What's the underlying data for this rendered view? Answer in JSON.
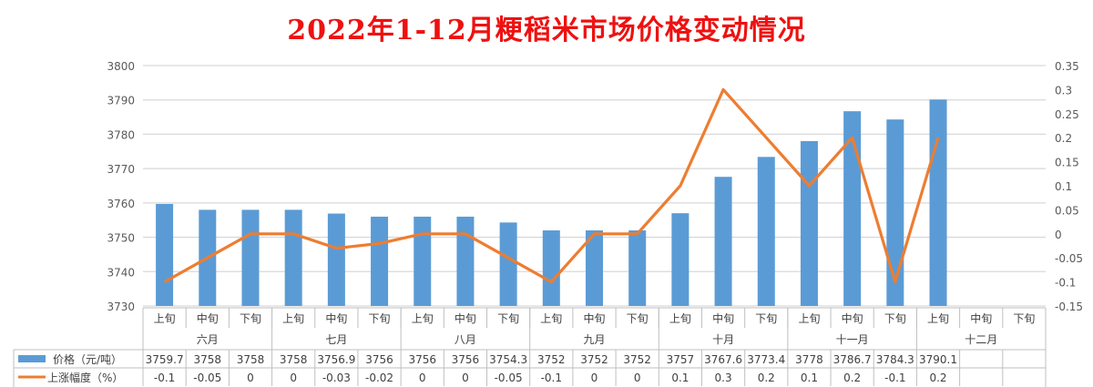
{
  "title": "2022年1-12月粳稻米市场价格变动情况",
  "colors": {
    "bar": "#5b9bd5",
    "line": "#ed7d31",
    "title": "#ee1111",
    "grid": "#d9d9d9"
  },
  "chart_data": {
    "type": "bar+line",
    "title": "2022年1-12月粳稻米市场价格变动情况",
    "categories_months": [
      "六月",
      "七月",
      "八月",
      "九月",
      "十月",
      "十一月",
      "十二月"
    ],
    "categories_periods": [
      "上旬",
      "中旬",
      "下旬"
    ],
    "categories": [
      "六月上旬",
      "六月中旬",
      "六月下旬",
      "七月上旬",
      "七月中旬",
      "七月下旬",
      "八月上旬",
      "八月中旬",
      "八月下旬",
      "九月上旬",
      "九月中旬",
      "九月下旬",
      "十月上旬",
      "十月中旬",
      "十月下旬",
      "十一月上旬",
      "十一月中旬",
      "十一月下旬",
      "十二月上旬",
      "十二月中旬",
      "十二月下旬"
    ],
    "series": [
      {
        "name": "价格（元/吨）",
        "type": "bar",
        "axis": "left",
        "values": [
          3759.7,
          3758,
          3758,
          3758,
          3756.9,
          3756,
          3756,
          3756,
          3754.3,
          3752,
          3752,
          3752,
          3757,
          3767.6,
          3773.4,
          3778,
          3786.7,
          3784.3,
          3790.1,
          null,
          null
        ]
      },
      {
        "name": "上涨幅度（%）",
        "type": "line",
        "axis": "right",
        "values": [
          -0.1,
          -0.05,
          0,
          0,
          -0.03,
          -0.02,
          0,
          0,
          -0.05,
          -0.1,
          0,
          0,
          0.1,
          0.3,
          0.2,
          0.1,
          0.2,
          -0.1,
          0.2,
          null,
          null
        ]
      }
    ],
    "left_axis": {
      "ylim": [
        3730,
        3800
      ],
      "ticks": [
        3730,
        3740,
        3750,
        3760,
        3770,
        3780,
        3790,
        3800
      ]
    },
    "right_axis": {
      "ylim": [
        -0.15,
        0.35
      ],
      "ticks": [
        -0.15,
        -0.1,
        -0.05,
        0,
        0.05,
        0.1,
        0.15,
        0.2,
        0.25,
        0.3,
        0.35
      ]
    },
    "grid": true,
    "legend": "data-table"
  },
  "table": {
    "row_labels": [
      "价格（元/吨）",
      "上涨幅度（%）"
    ],
    "price_row": [
      "3759.7",
      "3758",
      "3758",
      "3758",
      "3756.9",
      "3756",
      "3756",
      "3756",
      "3754.3",
      "3752",
      "3752",
      "3752",
      "3757",
      "3767.6",
      "3773.4",
      "3778",
      "3786.7",
      "3784.3",
      "3790.1",
      "",
      ""
    ],
    "change_row": [
      "-0.1",
      "-0.05",
      "0",
      "0",
      "-0.03",
      "-0.02",
      "0",
      "0",
      "-0.05",
      "-0.1",
      "0",
      "0",
      "0.1",
      "0.3",
      "0.2",
      "0.1",
      "0.2",
      "-0.1",
      "0.2",
      "",
      ""
    ]
  }
}
